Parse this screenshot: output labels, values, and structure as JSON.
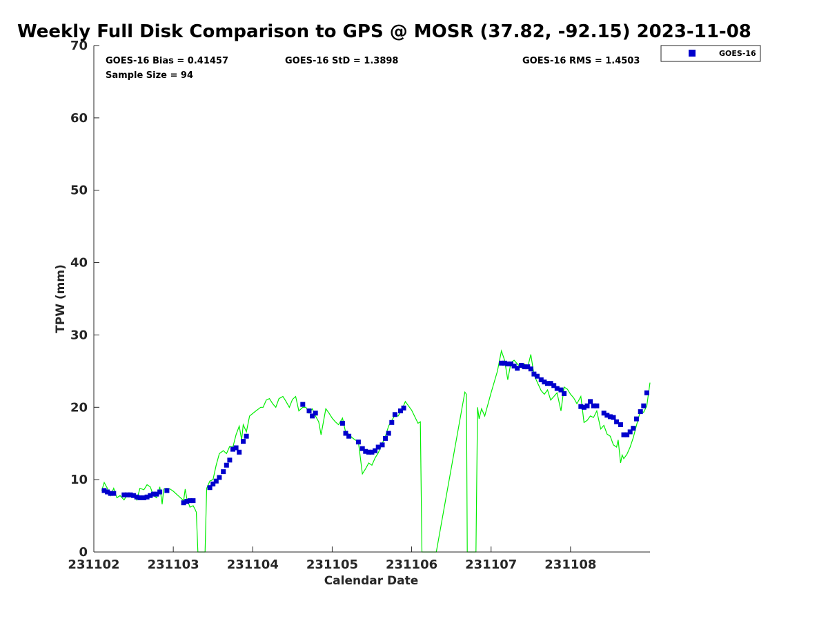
{
  "chart_data": {
    "type": "scatter",
    "title": "Weekly Full Disk Comparison to GPS @ MOSR (37.82, -92.15) 2023-11-08",
    "xlabel": "Calendar Date",
    "ylabel": "TPW (mm)",
    "xlim": [
      231102,
      231109
    ],
    "ylim": [
      0,
      70
    ],
    "x_ticks": [
      "231102",
      "231103",
      "231104",
      "231105",
      "231106",
      "231107",
      "231108"
    ],
    "y_ticks": [
      "0",
      "10",
      "20",
      "30",
      "40",
      "50",
      "60",
      "70"
    ],
    "grid": false,
    "legend": {
      "placement": "top-right-outside",
      "entries": [
        "GOES-16"
      ]
    },
    "stats": {
      "bias": "GOES-16 Bias = 0.41457",
      "std": "GOES-16 StD = 1.3898",
      "rms": "GOES-16 RMS = 1.4503",
      "sample": "Sample Size = 94"
    },
    "colors": {
      "goes": "#0000cc",
      "gps": "#00ee00"
    },
    "series": [
      {
        "name": "GOES-16",
        "kind": "scatter",
        "points": [
          [
            231102.13,
            8.5
          ],
          [
            231102.17,
            8.3
          ],
          [
            231102.21,
            8.1
          ],
          [
            231102.25,
            8.1
          ],
          [
            231102.38,
            7.9
          ],
          [
            231102.42,
            7.9
          ],
          [
            231102.46,
            7.9
          ],
          [
            231102.5,
            7.8
          ],
          [
            231102.54,
            7.6
          ],
          [
            231102.58,
            7.5
          ],
          [
            231102.63,
            7.5
          ],
          [
            231102.67,
            7.6
          ],
          [
            231102.71,
            7.8
          ],
          [
            231102.75,
            8.0
          ],
          [
            231102.79,
            8.0
          ],
          [
            231102.83,
            8.3
          ],
          [
            231102.92,
            8.5
          ],
          [
            231103.13,
            6.8
          ],
          [
            231103.17,
            7.0
          ],
          [
            231103.21,
            7.1
          ],
          [
            231103.25,
            7.1
          ],
          [
            231103.46,
            8.9
          ],
          [
            231103.5,
            9.4
          ],
          [
            231103.54,
            9.8
          ],
          [
            231103.58,
            10.3
          ],
          [
            231103.63,
            11.1
          ],
          [
            231103.67,
            12.0
          ],
          [
            231103.71,
            12.7
          ],
          [
            231103.75,
            14.2
          ],
          [
            231103.79,
            14.4
          ],
          [
            231103.83,
            13.8
          ],
          [
            231103.88,
            15.3
          ],
          [
            231103.92,
            16.0
          ],
          [
            231104.63,
            20.4
          ],
          [
            231104.71,
            19.5
          ],
          [
            231104.75,
            18.8
          ],
          [
            231104.79,
            19.2
          ],
          [
            231105.13,
            17.8
          ],
          [
            231105.17,
            16.4
          ],
          [
            231105.21,
            16.0
          ],
          [
            231105.33,
            15.2
          ],
          [
            231105.38,
            14.3
          ],
          [
            231105.42,
            13.9
          ],
          [
            231105.46,
            13.8
          ],
          [
            231105.5,
            13.8
          ],
          [
            231105.54,
            14.0
          ],
          [
            231105.58,
            14.5
          ],
          [
            231105.63,
            14.8
          ],
          [
            231105.67,
            15.7
          ],
          [
            231105.71,
            16.4
          ],
          [
            231105.75,
            17.9
          ],
          [
            231105.79,
            19.0
          ],
          [
            231105.86,
            19.5
          ],
          [
            231105.9,
            19.9
          ],
          [
            231107.13,
            26.1
          ],
          [
            231107.17,
            26.1
          ],
          [
            231107.21,
            26.0
          ],
          [
            231107.25,
            26.0
          ],
          [
            231107.29,
            25.7
          ],
          [
            231107.33,
            25.4
          ],
          [
            231107.38,
            25.8
          ],
          [
            231107.42,
            25.6
          ],
          [
            231107.46,
            25.6
          ],
          [
            231107.5,
            25.3
          ],
          [
            231107.54,
            24.6
          ],
          [
            231107.58,
            24.3
          ],
          [
            231107.63,
            23.8
          ],
          [
            231107.67,
            23.5
          ],
          [
            231107.71,
            23.3
          ],
          [
            231107.75,
            23.3
          ],
          [
            231107.79,
            23.0
          ],
          [
            231107.83,
            22.6
          ],
          [
            231107.88,
            22.4
          ],
          [
            231107.92,
            21.9
          ],
          [
            231108.13,
            20.1
          ],
          [
            231108.17,
            20.0
          ],
          [
            231108.21,
            20.2
          ],
          [
            231108.25,
            20.8
          ],
          [
            231108.29,
            20.2
          ],
          [
            231108.33,
            20.2
          ],
          [
            231108.42,
            19.2
          ],
          [
            231108.46,
            18.9
          ],
          [
            231108.5,
            18.7
          ],
          [
            231108.54,
            18.6
          ],
          [
            231108.58,
            18.0
          ],
          [
            231108.63,
            17.6
          ],
          [
            231108.67,
            16.2
          ],
          [
            231108.71,
            16.2
          ],
          [
            231108.75,
            16.6
          ],
          [
            231108.79,
            17.1
          ],
          [
            231108.83,
            18.4
          ],
          [
            231108.88,
            19.4
          ],
          [
            231108.92,
            20.2
          ],
          [
            231108.96,
            22.0
          ]
        ]
      },
      {
        "name": "",
        "kind": "line",
        "points": [
          [
            231102.1,
            8.5
          ],
          [
            231102.13,
            9.6
          ],
          [
            231102.17,
            8.8
          ],
          [
            231102.21,
            7.8
          ],
          [
            231102.25,
            8.8
          ],
          [
            231102.29,
            7.5
          ],
          [
            231102.33,
            7.8
          ],
          [
            231102.38,
            7.2
          ],
          [
            231102.42,
            7.9
          ],
          [
            231102.46,
            7.6
          ],
          [
            231102.5,
            8.0
          ],
          [
            231102.54,
            7.2
          ],
          [
            231102.58,
            8.8
          ],
          [
            231102.63,
            8.6
          ],
          [
            231102.67,
            9.3
          ],
          [
            231102.71,
            9.0
          ],
          [
            231102.75,
            7.8
          ],
          [
            231102.79,
            7.5
          ],
          [
            231102.83,
            9.0
          ],
          [
            231102.86,
            6.6
          ],
          [
            231102.88,
            8.7
          ],
          [
            231102.92,
            8.8
          ],
          [
            231102.96,
            8.7
          ],
          [
            231103.0,
            8.4
          ],
          [
            231103.04,
            8.0
          ],
          [
            231103.08,
            7.6
          ],
          [
            231103.13,
            7.1
          ],
          [
            231103.15,
            8.7
          ],
          [
            231103.17,
            7.4
          ],
          [
            231103.21,
            6.2
          ],
          [
            231103.25,
            6.4
          ],
          [
            231103.27,
            6.0
          ],
          [
            231103.29,
            5.5
          ],
          [
            231103.31,
            0.0
          ],
          [
            231103.4,
            0.0
          ],
          [
            231103.42,
            8.8
          ],
          [
            231103.46,
            9.8
          ],
          [
            231103.5,
            10.0
          ],
          [
            231103.54,
            12.0
          ],
          [
            231103.58,
            13.6
          ],
          [
            231103.63,
            14.0
          ],
          [
            231103.67,
            13.6
          ],
          [
            231103.71,
            14.6
          ],
          [
            231103.75,
            14.5
          ],
          [
            231103.79,
            16.2
          ],
          [
            231103.83,
            17.4
          ],
          [
            231103.86,
            15.5
          ],
          [
            231103.88,
            17.6
          ],
          [
            231103.92,
            16.6
          ],
          [
            231103.96,
            18.8
          ],
          [
            231104.04,
            19.5
          ],
          [
            231104.1,
            20.0
          ],
          [
            231104.13,
            20.0
          ],
          [
            231104.17,
            21.0
          ],
          [
            231104.21,
            21.2
          ],
          [
            231104.25,
            20.5
          ],
          [
            231104.29,
            20.0
          ],
          [
            231104.33,
            21.2
          ],
          [
            231104.38,
            21.5
          ],
          [
            231104.42,
            20.8
          ],
          [
            231104.46,
            20.0
          ],
          [
            231104.5,
            21.1
          ],
          [
            231104.54,
            21.5
          ],
          [
            231104.58,
            19.5
          ],
          [
            231104.63,
            20.0
          ],
          [
            231104.67,
            20.0
          ],
          [
            231104.71,
            19.2
          ],
          [
            231104.75,
            19.8
          ],
          [
            231104.79,
            18.8
          ],
          [
            231104.83,
            18.0
          ],
          [
            231104.86,
            16.2
          ],
          [
            231104.92,
            19.8
          ],
          [
            231104.96,
            19.2
          ],
          [
            231105.0,
            18.5
          ],
          [
            231105.04,
            18.0
          ],
          [
            231105.08,
            17.6
          ],
          [
            231105.13,
            18.5
          ],
          [
            231105.17,
            16.5
          ],
          [
            231105.21,
            16.3
          ],
          [
            231105.25,
            15.8
          ],
          [
            231105.29,
            15.5
          ],
          [
            231105.33,
            15.2
          ],
          [
            231105.38,
            10.8
          ],
          [
            231105.42,
            11.5
          ],
          [
            231105.46,
            12.3
          ],
          [
            231105.5,
            12.0
          ],
          [
            231105.54,
            13.0
          ],
          [
            231105.58,
            13.7
          ],
          [
            231105.63,
            15.0
          ],
          [
            231105.67,
            16.0
          ],
          [
            231105.71,
            17.4
          ],
          [
            231105.75,
            18.2
          ],
          [
            231105.79,
            18.9
          ],
          [
            231105.83,
            18.8
          ],
          [
            231105.88,
            19.7
          ],
          [
            231105.92,
            20.8
          ],
          [
            231106.0,
            19.6
          ],
          [
            231106.08,
            17.8
          ],
          [
            231106.11,
            18.0
          ],
          [
            231106.13,
            0.0
          ],
          [
            231106.31,
            0.0
          ],
          [
            231106.67,
            22.1
          ],
          [
            231106.69,
            21.8
          ],
          [
            231106.7,
            0.0
          ],
          [
            231106.81,
            0.0
          ],
          [
            231106.83,
            20.0
          ],
          [
            231106.85,
            18.4
          ],
          [
            231106.88,
            19.8
          ],
          [
            231106.92,
            18.8
          ],
          [
            231107.0,
            22.0
          ],
          [
            231107.08,
            25.0
          ],
          [
            231107.13,
            27.8
          ],
          [
            231107.17,
            26.5
          ],
          [
            231107.21,
            23.8
          ],
          [
            231107.25,
            26.2
          ],
          [
            231107.29,
            26.5
          ],
          [
            231107.33,
            26.0
          ],
          [
            231107.38,
            25.5
          ],
          [
            231107.42,
            26.0
          ],
          [
            231107.46,
            25.5
          ],
          [
            231107.5,
            27.3
          ],
          [
            231107.54,
            24.5
          ],
          [
            231107.58,
            23.5
          ],
          [
            231107.63,
            22.3
          ],
          [
            231107.67,
            21.8
          ],
          [
            231107.71,
            22.4
          ],
          [
            231107.75,
            21.0
          ],
          [
            231107.79,
            21.5
          ],
          [
            231107.83,
            22.0
          ],
          [
            231107.88,
            19.5
          ],
          [
            231107.92,
            22.8
          ],
          [
            231107.96,
            22.5
          ],
          [
            231108.0,
            21.8
          ],
          [
            231108.04,
            21.3
          ],
          [
            231108.08,
            20.5
          ],
          [
            231108.13,
            21.5
          ],
          [
            231108.17,
            17.9
          ],
          [
            231108.21,
            18.2
          ],
          [
            231108.25,
            18.8
          ],
          [
            231108.29,
            18.6
          ],
          [
            231108.33,
            19.5
          ],
          [
            231108.38,
            17.0
          ],
          [
            231108.42,
            17.5
          ],
          [
            231108.46,
            16.3
          ],
          [
            231108.5,
            16.0
          ],
          [
            231108.54,
            14.8
          ],
          [
            231108.58,
            14.5
          ],
          [
            231108.6,
            15.5
          ],
          [
            231108.63,
            12.3
          ],
          [
            231108.65,
            13.4
          ],
          [
            231108.67,
            12.9
          ],
          [
            231108.71,
            13.5
          ],
          [
            231108.75,
            14.5
          ],
          [
            231108.79,
            15.8
          ],
          [
            231108.83,
            17.5
          ],
          [
            231108.88,
            19.5
          ],
          [
            231108.92,
            19.3
          ],
          [
            231108.96,
            20.2
          ],
          [
            231109.0,
            23.4
          ]
        ]
      }
    ]
  }
}
